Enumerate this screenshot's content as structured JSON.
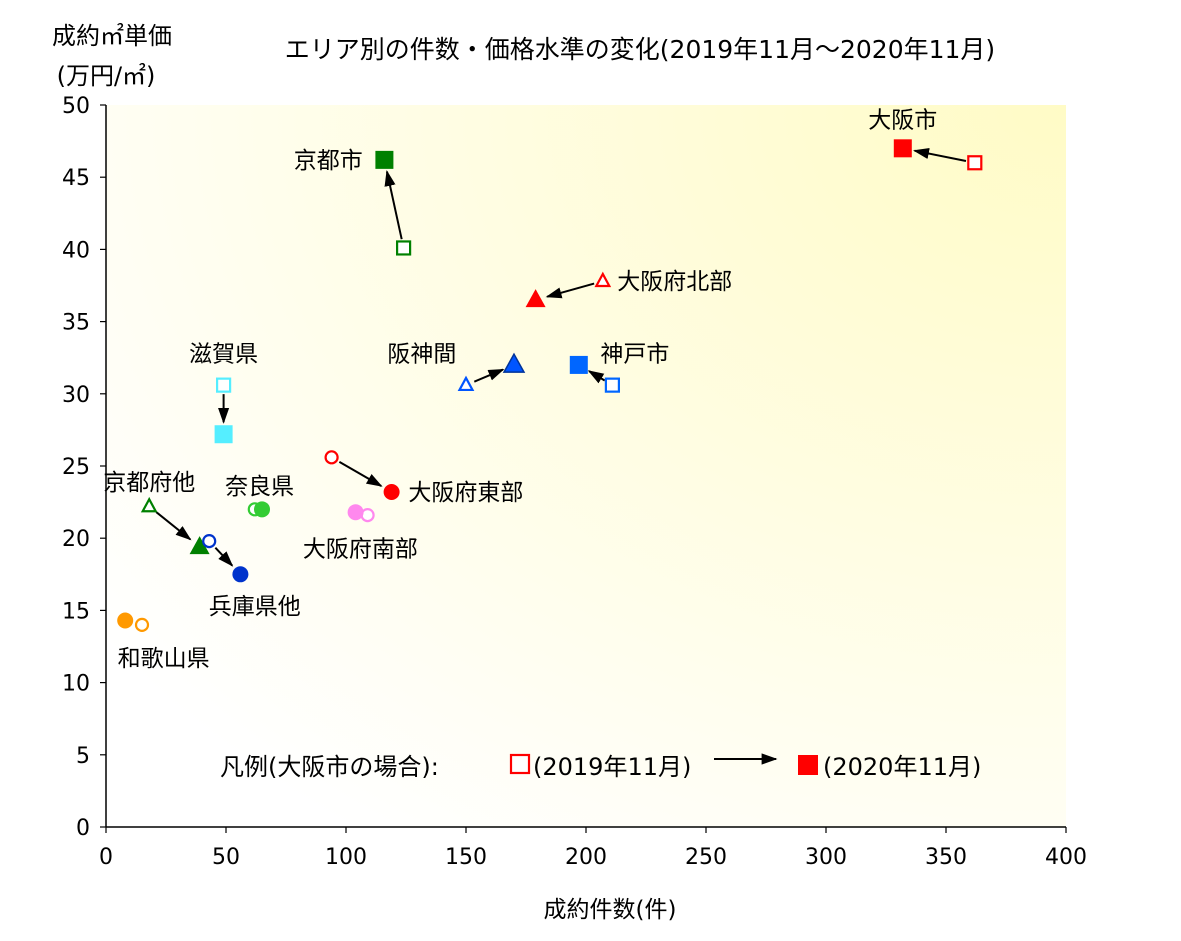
{
  "chart_data": {
    "type": "scatter",
    "title": "エリア別の件数・価格水準の変化(2019年11月〜2020年11月)",
    "ylabel_line1": "成約㎡単価",
    "ylabel_line2": "(万円/㎡)",
    "xlabel": "成約件数(件)",
    "xlim": [
      0,
      400
    ],
    "ylim": [
      0,
      50
    ],
    "xticks": [
      0,
      50,
      100,
      150,
      200,
      250,
      300,
      350,
      400
    ],
    "yticks": [
      0,
      5,
      10,
      15,
      20,
      25,
      30,
      35,
      40,
      45,
      50
    ],
    "grid": false,
    "legend": {
      "label": "凡例(大阪市の場合):",
      "before_label": "(2019年11月)",
      "after_label": "(2020年11月)",
      "color": "#ff0000",
      "shape": "square"
    },
    "series": [
      {
        "name": "大阪市",
        "shape": "square",
        "color": "#ff0000",
        "before": [
          362,
          46.0
        ],
        "after": [
          332,
          47.0
        ],
        "arrow": true,
        "label_pos": [
          332,
          49.0
        ],
        "label_anchor": "middle"
      },
      {
        "name": "京都市",
        "shape": "square",
        "color": "#008000",
        "before": [
          124,
          40.1
        ],
        "after": [
          116,
          46.2
        ],
        "arrow": true,
        "label_pos": [
          107,
          46.2
        ],
        "label_anchor": "end"
      },
      {
        "name": "大阪府北部",
        "shape": "triangle",
        "color": "#ff0000",
        "before": [
          207,
          37.8
        ],
        "after": [
          179,
          36.5
        ],
        "arrow": true,
        "label_pos": [
          213,
          37.8
        ],
        "label_anchor": "start"
      },
      {
        "name": "阪神間",
        "shape": "triangle",
        "color": "#0055ff",
        "before": [
          150,
          30.6
        ],
        "after": [
          170,
          32.0
        ],
        "arrow": true,
        "label_pos": [
          146,
          32.8
        ],
        "label_anchor": "end"
      },
      {
        "name": "神戸市",
        "shape": "square",
        "color": "#0066ff",
        "before": [
          211,
          30.6
        ],
        "after": [
          197,
          32.0
        ],
        "arrow": true,
        "label_pos": [
          206,
          32.8
        ],
        "label_anchor": "start"
      },
      {
        "name": "滋賀県",
        "shape": "square",
        "color": "#55eeff",
        "before": [
          49,
          30.6
        ],
        "after": [
          49,
          27.2
        ],
        "arrow": true,
        "label_pos": [
          49,
          32.8
        ],
        "label_anchor": "middle"
      },
      {
        "name": "大阪府東部",
        "shape": "circle",
        "color": "#ff0000",
        "before": [
          94,
          25.6
        ],
        "after": [
          119,
          23.2
        ],
        "arrow": true,
        "label_pos": [
          126,
          23.2
        ],
        "label_anchor": "start"
      },
      {
        "name": "京都府他",
        "shape": "triangle",
        "color": "#008000",
        "before": [
          18,
          22.2
        ],
        "after": [
          39,
          19.4
        ],
        "arrow": true,
        "label_pos": [
          18,
          23.9
        ],
        "label_anchor": "middle"
      },
      {
        "name": "奈良県",
        "shape": "circle",
        "color": "#33cc33",
        "before": [
          62,
          22.0
        ],
        "after": [
          65,
          22.0
        ],
        "arrow": false,
        "label_pos": [
          64,
          23.6
        ],
        "label_anchor": "middle"
      },
      {
        "name": "大阪府南部",
        "shape": "circle",
        "color": "#ff88ee",
        "before": [
          109,
          21.6
        ],
        "after": [
          104,
          21.8
        ],
        "arrow": false,
        "label_pos": [
          106,
          19.3
        ],
        "label_anchor": "middle"
      },
      {
        "name": "兵庫県他",
        "shape": "circle",
        "color": "#0033cc",
        "before": [
          43,
          19.8
        ],
        "after": [
          56,
          17.5
        ],
        "arrow": true,
        "label_pos": [
          62,
          15.3
        ],
        "label_anchor": "middle"
      },
      {
        "name": "和歌山県",
        "shape": "circle",
        "color": "#ff9900",
        "before": [
          15,
          14.0
        ],
        "after": [
          8,
          14.3
        ],
        "arrow": false,
        "label_pos": [
          24,
          11.7
        ],
        "label_anchor": "middle"
      }
    ]
  }
}
